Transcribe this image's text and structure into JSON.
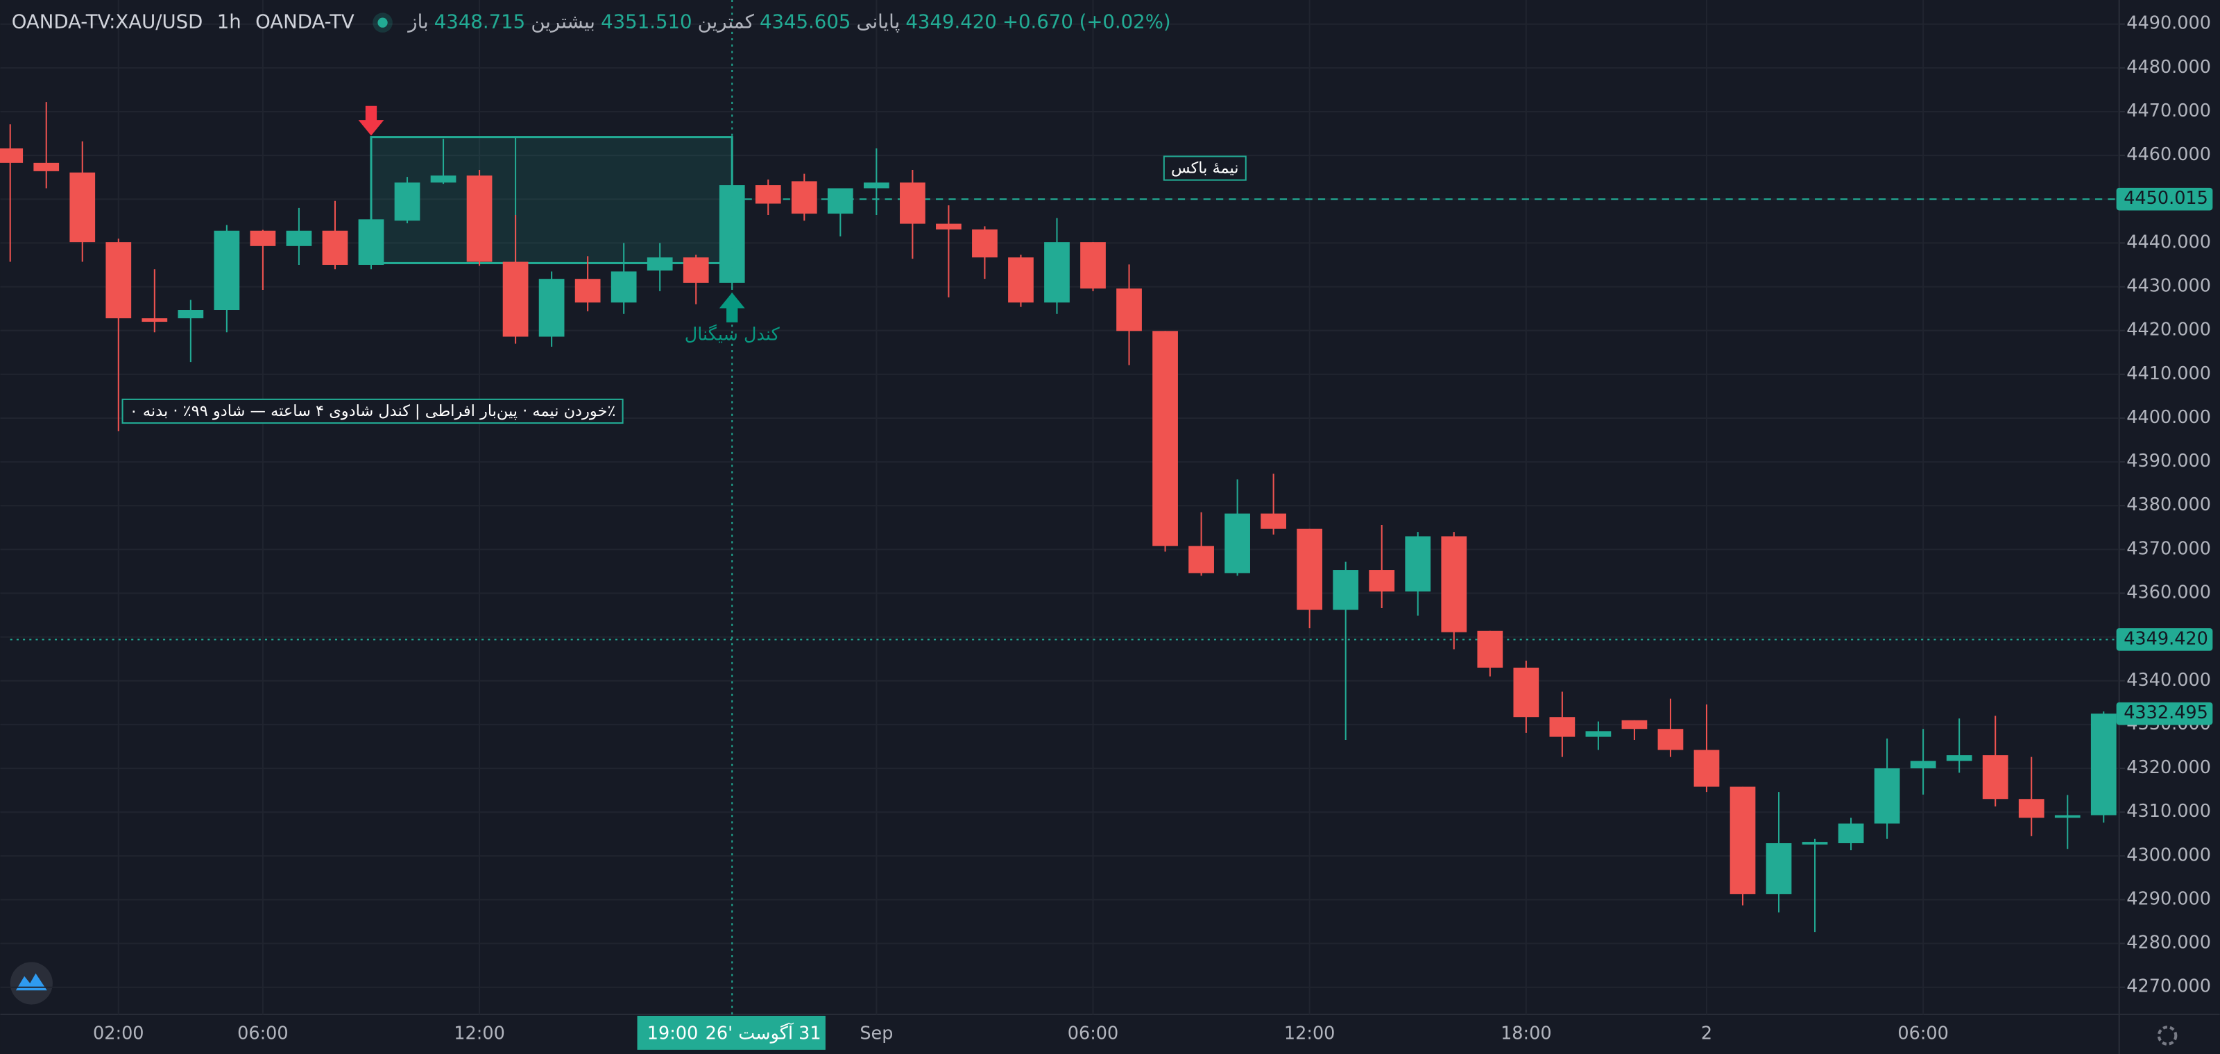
{
  "chart_data": {
    "type": "candlestick",
    "header": {
      "symbol": "OANDA-TV:XAU/USD",
      "interval": "1h",
      "source": "OANDA-TV",
      "ohlc": [
        {
          "label": "باز",
          "value": "4348.715"
        },
        {
          "label": "بیشترین",
          "value": "4351.510"
        },
        {
          "label": "کمترین",
          "value": "4345.605"
        },
        {
          "label": "پایانی",
          "value": "4349.420"
        }
      ],
      "change": "+0.670 (+0.02%)"
    },
    "categories": [
      null,
      null,
      null,
      "02:00",
      null,
      null,
      null,
      "06:00",
      null,
      null,
      null,
      null,
      null,
      "12:00",
      null,
      null,
      null,
      null,
      null,
      null,
      null,
      null,
      null,
      null,
      "Sep",
      null,
      null,
      null,
      null,
      null,
      "06:00",
      null,
      null,
      null,
      null,
      null,
      "12:00",
      null,
      null,
      null,
      null,
      null,
      "18:00",
      null,
      null,
      null,
      null,
      "2",
      null,
      null,
      null,
      null,
      null,
      "06:00",
      null,
      null,
      null,
      null,
      null
    ],
    "open": [
      4461.6,
      4458.3,
      4456.1,
      4440.2,
      4422.8,
      4422.8,
      4424.7,
      4442.8,
      4439.3,
      4442.8,
      4435,
      4445.1,
      4453.8,
      4455.4,
      4435.7,
      4418.6,
      4431.8,
      4426.4,
      4433.7,
      4436.7,
      4430.9,
      4453.2,
      4454.1,
      4446.7,
      4452.5,
      4453.8,
      4444.4,
      4443.1,
      4436.7,
      4426.4,
      4440.2,
      4429.6,
      4419.9,
      4370.8,
      4364.6,
      4378.2,
      4374.7,
      4356.2,
      4365.3,
      4360.4,
      4373,
      4351.4,
      4343,
      4331.7,
      4327.2,
      4331,
      4329,
      4324.2,
      4315.8,
      4291.3,
      4302.6,
      4302.9,
      4307.4,
      4320,
      4321.7,
      4323,
      4313,
      4308.7,
      4309.3
    ],
    "high": [
      4467.1,
      4472.2,
      4463.2,
      4441,
      4434,
      4427,
      4444.1,
      4443,
      4448,
      4449.6,
      4448,
      4455.1,
      4463.8,
      4456.7,
      4446.4,
      4433.5,
      4437,
      4440,
      4440,
      4437.3,
      4453.2,
      4454.5,
      4455.8,
      4452.5,
      4461.6,
      4456.7,
      4448.6,
      4443.8,
      4437.3,
      4445.7,
      4440.2,
      4435.1,
      4419.9,
      4378.5,
      4386,
      4387.3,
      4374.7,
      4367.2,
      4375.6,
      4374,
      4374,
      4351.4,
      4344.6,
      4337.5,
      4330.7,
      4331,
      4335.9,
      4334.6,
      4315.8,
      4314.6,
      4303.9,
      4308.7,
      4326.8,
      4329,
      4331.4,
      4332,
      4322.6,
      4313.9,
      4333
    ],
    "low": [
      4435.7,
      4452.5,
      4435.7,
      4397,
      4419.6,
      4412.8,
      4419.6,
      4429.3,
      4435,
      4434,
      4434,
      4444.5,
      4453.5,
      4434.8,
      4417,
      4416.3,
      4424.4,
      4423.8,
      4429,
      4426,
      4429.3,
      4446.4,
      4445.1,
      4441.5,
      4446.4,
      4436.4,
      4427.6,
      4431.8,
      4425.4,
      4423.8,
      4429,
      4412.1,
      4369.5,
      4364,
      4364,
      4373.4,
      4352,
      4326.5,
      4356.6,
      4354.9,
      4347.2,
      4341,
      4328.1,
      4322.6,
      4324.2,
      4326.5,
      4322.6,
      4314.6,
      4288.7,
      4287.1,
      4282.6,
      4301.3,
      4303.9,
      4314,
      4319,
      4311.3,
      4304.5,
      4301.6,
      4307.6
    ],
    "close": [
      4458.3,
      4456.4,
      4440.2,
      4422.8,
      4422.0,
      4424.7,
      4442.8,
      4439.3,
      4442.8,
      4435,
      4445.4,
      4453.8,
      4455.4,
      4435.7,
      4418.6,
      4431.8,
      4426.4,
      4433.5,
      4436.7,
      4430.9,
      4453.2,
      4449,
      4446.7,
      4452.5,
      4453.8,
      4444.4,
      4443.1,
      4436.7,
      4426.4,
      4440.2,
      4429.6,
      4419.9,
      4370.8,
      4364.6,
      4378.2,
      4374.7,
      4356.2,
      4365.3,
      4360.4,
      4373,
      4351.1,
      4343,
      4331.7,
      4327.2,
      4328.5,
      4329,
      4324.2,
      4315.8,
      4291.3,
      4302.9,
      4303.2,
      4307.4,
      4320,
      4321.7,
      4323,
      4313,
      4308.7,
      4309.3,
      4332.5
    ],
    "up_color": "#22ab94",
    "down_color": "#f05350",
    "ylim": [
      4263.8,
      4495.5
    ],
    "yticks": [
      {
        "value": 4270,
        "label": "4270.000"
      },
      {
        "value": 4280,
        "label": "4280.000"
      },
      {
        "value": 4290,
        "label": "4290.000"
      },
      {
        "value": 4300,
        "label": "4300.000"
      },
      {
        "value": 4310,
        "label": "4310.000"
      },
      {
        "value": 4320,
        "label": "4320.000"
      },
      {
        "value": 4330,
        "label": "4330.000"
      },
      {
        "value": 4340,
        "label": "4340.000"
      },
      {
        "value": 4350,
        "label": "4350.000"
      },
      {
        "value": 4360,
        "label": "4360.000"
      },
      {
        "value": 4370,
        "label": "4370.000"
      },
      {
        "value": 4380,
        "label": "4380.000"
      },
      {
        "value": 4390,
        "label": "4390.000"
      },
      {
        "value": 4400,
        "label": "4400.000"
      },
      {
        "value": 4410,
        "label": "4410.000"
      },
      {
        "value": 4420,
        "label": "4420.000"
      },
      {
        "value": 4430,
        "label": "4430.000"
      },
      {
        "value": 4440,
        "label": "4440.000"
      },
      {
        "value": 4450,
        "label": "4450.000"
      },
      {
        "value": 4460,
        "label": "4460.000"
      },
      {
        "value": 4470,
        "label": "4470.000"
      },
      {
        "value": 4480,
        "label": "4480.000"
      },
      {
        "value": 4490,
        "label": "4490.000"
      }
    ],
    "grid": true,
    "price_lines": [
      {
        "value": 4450.015,
        "style": "dashed",
        "from": 20
      },
      {
        "value": 4349.42,
        "label": "4349.420",
        "style": "dotted",
        "from": 0
      },
      {
        "value": 4332.495,
        "style": "none",
        "from": 58
      }
    ],
    "crosshair": {
      "index": 20,
      "date_label": "31 آگوست '26",
      "time_label": "19:00"
    },
    "box": {
      "start": 10,
      "end": 20,
      "divider": 14,
      "top": 4464.2,
      "bottom": 4435.4
    },
    "markers": [
      {
        "index": 10,
        "position": "above",
        "color": "#f23645"
      },
      {
        "index": 20,
        "position": "below",
        "color": "#089981",
        "text": "کندل سیگنال"
      }
    ],
    "annotations": [
      {
        "text": "نیمهٔ باکس",
        "x": 33.1,
        "y": 4457
      },
      {
        "text": "٪خوردن نیمه · پین‌بار افراطی | کندل شادوی ۴ ساعته — شادو ۹۹٪ · بدنه ۰",
        "x": 10.04,
        "y": 4401.5
      }
    ]
  }
}
